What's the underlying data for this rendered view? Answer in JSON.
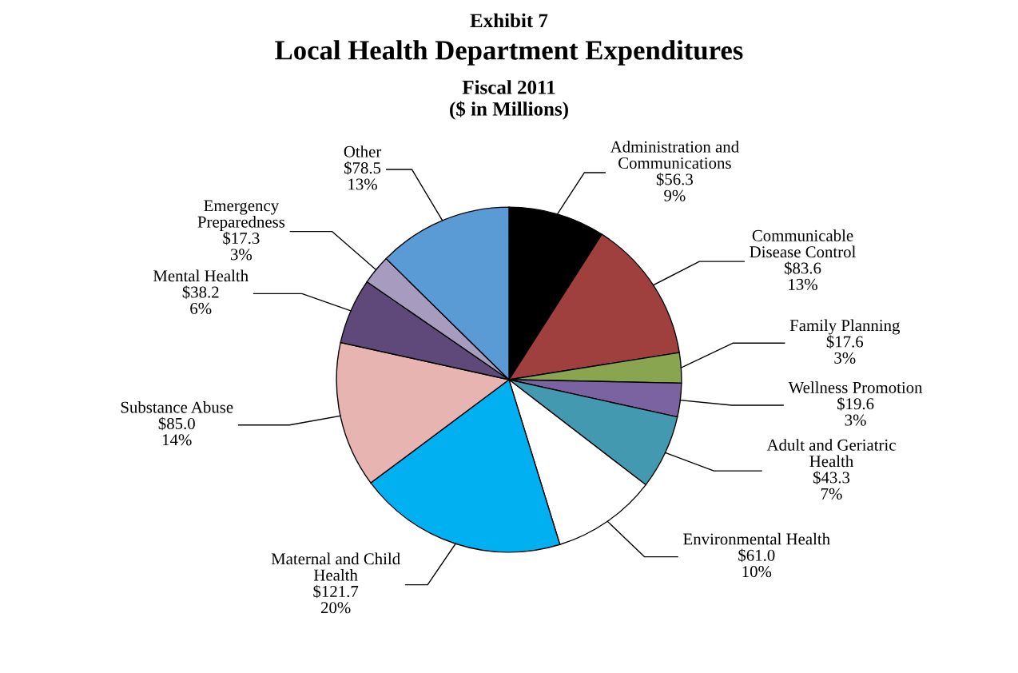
{
  "chart_data": {
    "type": "pie",
    "title": "Exhibit 7\nLocal Health Department Expenditures",
    "subtitle": "Fiscal 2011\n($ in Millions)",
    "categories": [
      "Administration and\nCommunications",
      "Communicable\nDisease Control",
      "Family Planning",
      "Wellness Promotion",
      "Adult and Geriatric\nHealth",
      "Environmental Health",
      "Maternal and Child\nHealth",
      "Substance Abuse",
      "Mental Health",
      "Emergency\nPreparedness",
      "Other"
    ],
    "values": [
      56.3,
      83.6,
      17.6,
      19.6,
      43.3,
      61.0,
      121.7,
      85.0,
      38.2,
      17.3,
      78.5
    ],
    "value_labels": [
      "$56.3\n9%",
      "$83.6\n13%",
      "$17.6\n3%",
      "$19.6\n3%",
      "$43.3\n7%",
      "$61.0\n10%",
      "$121.7\n20%",
      "$85.0\n14%",
      "$38.2\n6%",
      "$17.3\n3%",
      "$78.5\n13%"
    ],
    "colors": [
      "#000000",
      "#a0403e",
      "#8aa54f",
      "#7b62a0",
      "#4399b0",
      "#ffffff",
      "#00b0f0",
      "#e8b4b2",
      "#5f497a",
      "#a89bc0",
      "#5b9bd5"
    ],
    "legend": false
  }
}
